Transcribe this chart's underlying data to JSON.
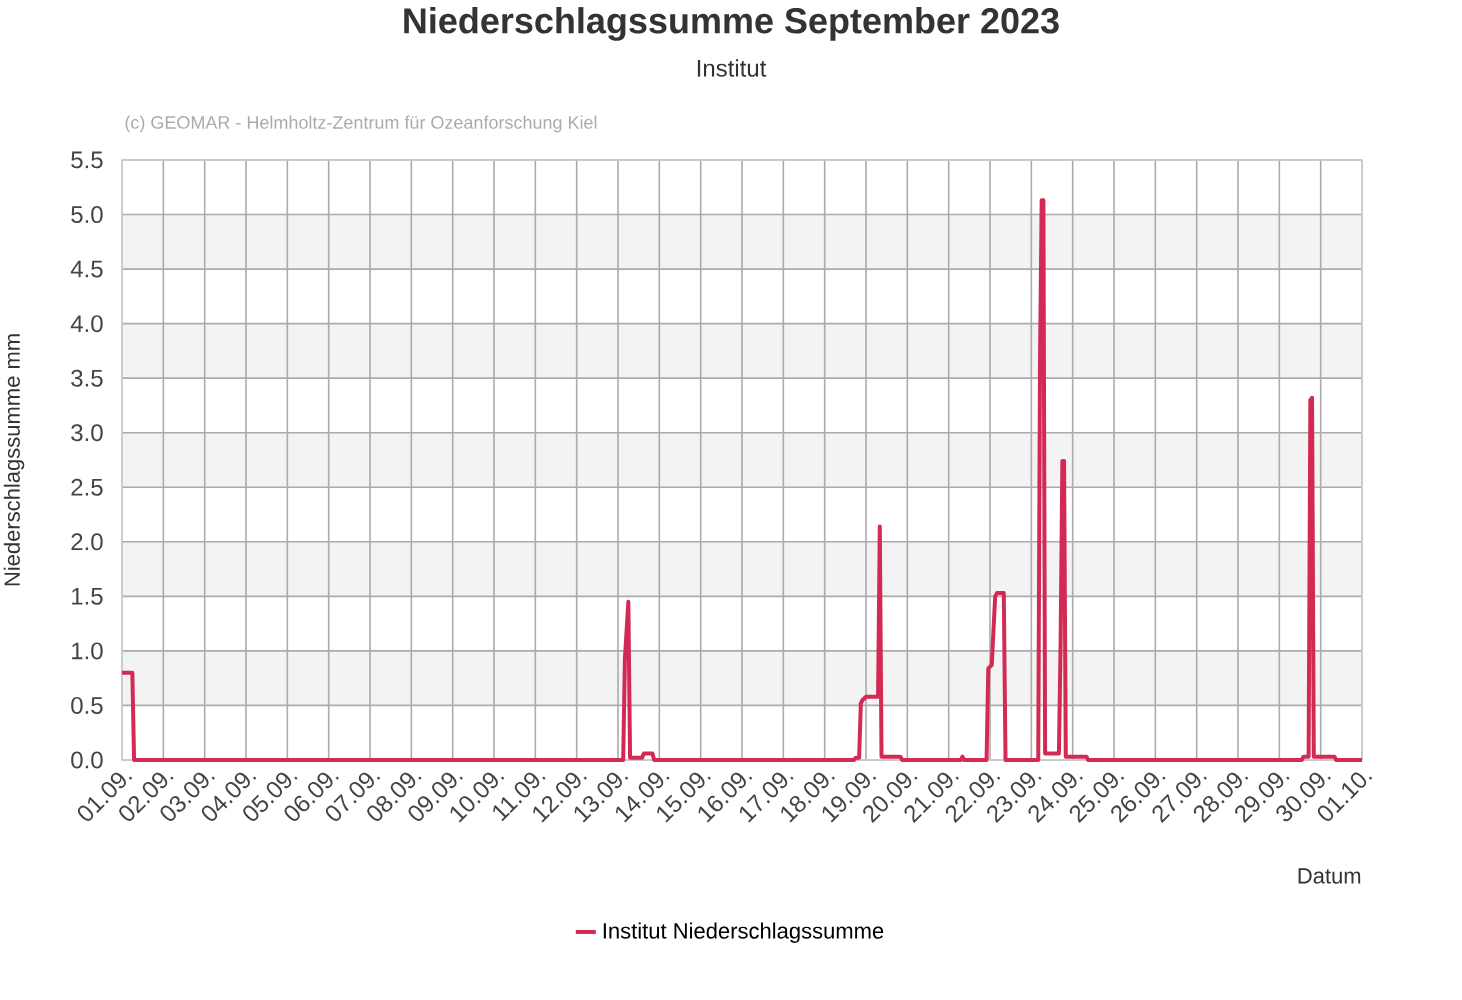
{
  "chart_data": {
    "type": "line",
    "title": "Niederschlagssumme September 2023",
    "subtitle": "Institut",
    "xlabel": "Datum",
    "ylabel": "Niederschlagssumme mm",
    "annotations": [
      "(c) GEOMAR - Helmholtz-Zentrum für Ozeanforschung Kiel"
    ],
    "x": [
      "2023-09-01T00:00",
      "2023-09-01T06:00",
      "2023-09-01T07:00",
      "2023-09-13T03:00",
      "2023-09-13T04:00",
      "2023-09-13T06:00",
      "2023-09-13T07:00",
      "2023-09-13T14:00",
      "2023-09-13T15:00",
      "2023-09-13T20:00",
      "2023-09-13T21:00",
      "2023-09-18T17:00",
      "2023-09-18T18:00",
      "2023-09-18T20:00",
      "2023-09-18T21:00",
      "2023-09-18T22:00",
      "2023-09-19T00:00",
      "2023-09-19T07:00",
      "2023-09-19T08:00",
      "2023-09-19T09:00",
      "2023-09-19T20:00",
      "2023-09-19T21:00",
      "2023-09-21T07:00",
      "2023-09-21T08:00",
      "2023-09-21T09:00",
      "2023-09-21T22:00",
      "2023-09-21T23:00",
      "2023-09-22T01:00",
      "2023-09-22T03:00",
      "2023-09-22T04:00",
      "2023-09-22T08:00",
      "2023-09-22T09:00",
      "2023-09-23T04:00",
      "2023-09-23T05:00",
      "2023-09-23T06:00",
      "2023-09-23T07:00",
      "2023-09-23T08:00",
      "2023-09-23T16:00",
      "2023-09-23T17:00",
      "2023-09-23T18:00",
      "2023-09-23T19:00",
      "2023-09-23T20:00",
      "2023-09-24T08:00",
      "2023-09-24T09:00",
      "2023-09-29T13:00",
      "2023-09-29T14:00",
      "2023-09-29T17:00",
      "2023-09-29T18:00",
      "2023-09-29T19:00",
      "2023-09-29T20:00",
      "2023-09-30T08:00",
      "2023-09-30T09:00",
      "2023-10-01T00:00"
    ],
    "series": [
      {
        "name": "Institut Niederschlagssumme",
        "color": "#d22a55",
        "values": [
          0.8,
          0.8,
          0,
          0,
          0.93,
          1.45,
          0.02,
          0.02,
          0.06,
          0.06,
          0,
          0,
          0.02,
          0.02,
          0.52,
          0.55,
          0.58,
          0.58,
          2.14,
          0.03,
          0.03,
          0,
          0,
          0.03,
          0,
          0,
          0.84,
          0.87,
          1.5,
          1.53,
          1.53,
          0,
          0,
          3.6,
          5.13,
          5.13,
          0.06,
          0.06,
          1.08,
          2.74,
          2.74,
          0.03,
          0.03,
          0,
          0,
          0.03,
          0.03,
          3.3,
          3.32,
          0.03,
          0.03,
          0,
          0
        ]
      }
    ],
    "xlim": [
      "2023-09-01",
      "2023-10-01"
    ],
    "xticks": [
      {
        "value": "2023-09-01",
        "label": "01.09."
      },
      {
        "value": "2023-09-02",
        "label": "02.09."
      },
      {
        "value": "2023-09-03",
        "label": "03.09."
      },
      {
        "value": "2023-09-04",
        "label": "04.09."
      },
      {
        "value": "2023-09-05",
        "label": "05.09."
      },
      {
        "value": "2023-09-06",
        "label": "06.09."
      },
      {
        "value": "2023-09-07",
        "label": "07.09."
      },
      {
        "value": "2023-09-08",
        "label": "08.09."
      },
      {
        "value": "2023-09-09",
        "label": "09.09."
      },
      {
        "value": "2023-09-10",
        "label": "10.09."
      },
      {
        "value": "2023-09-11",
        "label": "11.09."
      },
      {
        "value": "2023-09-12",
        "label": "12.09."
      },
      {
        "value": "2023-09-13",
        "label": "13.09."
      },
      {
        "value": "2023-09-14",
        "label": "14.09."
      },
      {
        "value": "2023-09-15",
        "label": "15.09."
      },
      {
        "value": "2023-09-16",
        "label": "16.09."
      },
      {
        "value": "2023-09-17",
        "label": "17.09."
      },
      {
        "value": "2023-09-18",
        "label": "18.09."
      },
      {
        "value": "2023-09-19",
        "label": "19.09."
      },
      {
        "value": "2023-09-20",
        "label": "20.09."
      },
      {
        "value": "2023-09-21",
        "label": "21.09."
      },
      {
        "value": "2023-09-22",
        "label": "22.09."
      },
      {
        "value": "2023-09-23",
        "label": "23.09."
      },
      {
        "value": "2023-09-24",
        "label": "24.09."
      },
      {
        "value": "2023-09-25",
        "label": "25.09."
      },
      {
        "value": "2023-09-26",
        "label": "26.09."
      },
      {
        "value": "2023-09-27",
        "label": "27.09."
      },
      {
        "value": "2023-09-28",
        "label": "28.09."
      },
      {
        "value": "2023-09-29",
        "label": "29.09."
      },
      {
        "value": "2023-09-30",
        "label": "30.09."
      },
      {
        "value": "2023-10-01",
        "label": "01.10."
      }
    ],
    "ylim": [
      0,
      5.5
    ],
    "yticks": [
      {
        "value": 0,
        "label": "0.0"
      },
      0.5,
      {
        "value": 1,
        "label": "1.0"
      },
      1.5,
      {
        "value": 2,
        "label": "2.0"
      },
      2.5,
      {
        "value": 3,
        "label": "3.0"
      },
      3.5,
      {
        "value": 4,
        "label": "4.0"
      },
      4.5,
      {
        "value": 5,
        "label": "5.0"
      },
      5.5
    ],
    "bands": [
      {
        "axis": "y",
        "from": 0.5,
        "to": 1,
        "color": "#f3f3f3"
      },
      {
        "axis": "y",
        "from": 1.5,
        "to": 2,
        "color": "#f3f3f3"
      },
      {
        "axis": "y",
        "from": 2.5,
        "to": 3,
        "color": "#f3f3f3"
      },
      {
        "axis": "y",
        "from": 3.5,
        "to": 4,
        "color": "#f3f3f3"
      },
      {
        "axis": "y",
        "from": 4.5,
        "to": 5,
        "color": "#f3f3f3"
      }
    ],
    "grid": true,
    "legend": "bottom",
    "marker": "none"
  }
}
